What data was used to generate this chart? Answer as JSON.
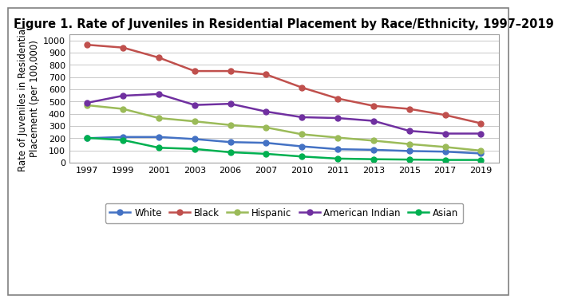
{
  "title": "Figure 1. Rate of Juveniles in Residential Placement by Race/Ethnicity, 1997–2019",
  "ylabel": "Rate of Juveniles in Residential\nPlacement (per 100,000)",
  "years": [
    1997,
    1999,
    2001,
    2003,
    2006,
    2007,
    2010,
    2011,
    2013,
    2015,
    2017,
    2019
  ],
  "year_labels": [
    "1997",
    "1999",
    "2001",
    "2003",
    "2006",
    "2007",
    "2010",
    "2011",
    "2013",
    "2015",
    "2017",
    "2019"
  ],
  "series": {
    "White": {
      "values": [
        200,
        210,
        210,
        193,
        168,
        162,
        133,
        110,
        105,
        95,
        90,
        75
      ],
      "color": "#4472C4",
      "marker": "o"
    },
    "Black": {
      "values": [
        965,
        942,
        860,
        750,
        750,
        722,
        615,
        525,
        465,
        440,
        390,
        322
      ],
      "color": "#C0504D",
      "marker": "o"
    },
    "Hispanic": {
      "values": [
        470,
        440,
        365,
        338,
        308,
        288,
        232,
        205,
        180,
        152,
        128,
        98
      ],
      "color": "#9BBB59",
      "marker": "o"
    },
    "American Indian": {
      "values": [
        490,
        548,
        562,
        472,
        482,
        418,
        372,
        365,
        342,
        260,
        238,
        238
      ],
      "color": "#7030A0",
      "marker": "o"
    },
    "Asian": {
      "values": [
        203,
        185,
        122,
        112,
        85,
        72,
        50,
        33,
        28,
        25,
        22,
        22
      ],
      "color": "#00B050",
      "marker": "o"
    }
  },
  "series_order": [
    "White",
    "Black",
    "Hispanic",
    "American Indian",
    "Asian"
  ],
  "ylim": [
    0,
    1050
  ],
  "yticks": [
    0,
    100,
    200,
    300,
    400,
    500,
    600,
    700,
    800,
    900,
    1000
  ],
  "background_color": "#FFFFFF",
  "plot_bg_color": "#FFFFFF",
  "grid_color": "#C8C8C8",
  "title_fontsize": 10.5,
  "axis_label_fontsize": 8.5,
  "tick_fontsize": 8,
  "legend_fontsize": 8.5,
  "line_width": 1.8,
  "marker_size": 5,
  "outer_border_color": "#808080",
  "outer_border_lw": 1.2
}
